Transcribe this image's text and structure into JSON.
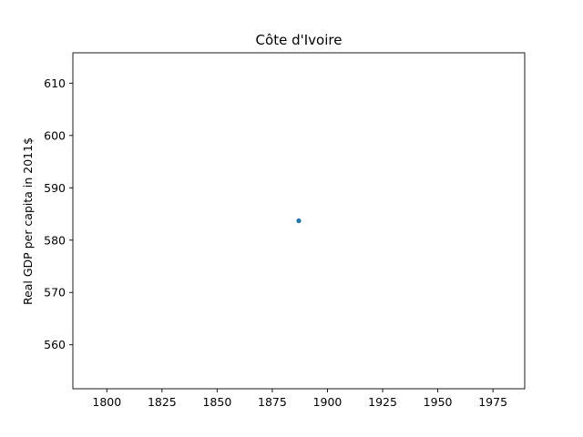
{
  "chart_data": {
    "type": "scatter",
    "title": "Côte d'Ivoire",
    "xlabel": "",
    "ylabel": "Real GDP per capita in 2011$",
    "x": [
      1887
    ],
    "y": [
      583.7
    ],
    "xlim": [
      1784.6,
      1989.4
    ],
    "ylim": [
      551.6,
      615.8
    ],
    "xticks": [
      1800,
      1825,
      1850,
      1875,
      1900,
      1925,
      1950,
      1975
    ],
    "yticks": [
      560,
      570,
      580,
      590,
      600,
      610
    ],
    "xtick_labels": [
      "1800",
      "1825",
      "1850",
      "1875",
      "1900",
      "1925",
      "1950",
      "1975"
    ],
    "ytick_labels": [
      "560",
      "570",
      "580",
      "590",
      "600",
      "610"
    ],
    "grid": false,
    "colors": {
      "marker": "#1f77b4",
      "axes": "#000000"
    }
  }
}
